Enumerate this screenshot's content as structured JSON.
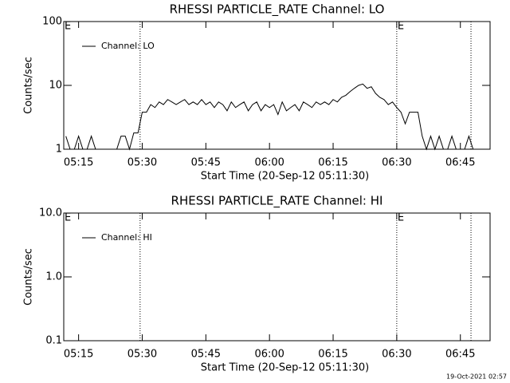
{
  "chart_data": [
    {
      "type": "line",
      "title": "RHESSI PARTICLE_RATE Channel: LO",
      "xlabel": "Start Time (20-Sep-12 05:11:30)",
      "ylabel": "Counts/sec",
      "log_y": true,
      "xlim": [
        11.5,
        112
      ],
      "ylim": [
        1,
        100
      ],
      "xticks": [
        {
          "value": 15,
          "label": "05:15"
        },
        {
          "value": 30,
          "label": "05:30"
        },
        {
          "value": 45,
          "label": "05:45"
        },
        {
          "value": 60,
          "label": "06:00"
        },
        {
          "value": 75,
          "label": "06:15"
        },
        {
          "value": 90,
          "label": "06:30"
        },
        {
          "value": 105,
          "label": "06:45"
        }
      ],
      "yticks": [
        1,
        10,
        100
      ],
      "event_lines": [
        29.5,
        90,
        107.5
      ],
      "event_labels": [
        {
          "x": 11.5,
          "label": "E"
        },
        {
          "x": 90,
          "label": "E"
        }
      ],
      "x": [
        12,
        13,
        14,
        15,
        16,
        17,
        18,
        19,
        20,
        21,
        22,
        23,
        24,
        25,
        26,
        27,
        28,
        29,
        30,
        31,
        32,
        33,
        34,
        35,
        36,
        37,
        38,
        39,
        40,
        41,
        42,
        43,
        44,
        45,
        46,
        47,
        48,
        49,
        50,
        51,
        52,
        53,
        54,
        55,
        56,
        57,
        58,
        59,
        60,
        61,
        62,
        63,
        64,
        65,
        66,
        67,
        68,
        69,
        70,
        71,
        72,
        73,
        74,
        75,
        76,
        77,
        78,
        79,
        80,
        81,
        82,
        83,
        84,
        85,
        86,
        87,
        88,
        89,
        90,
        91,
        92,
        93,
        94,
        95,
        96,
        97,
        98,
        99,
        100,
        101,
        102,
        103,
        104,
        105,
        106,
        107,
        108,
        109,
        110,
        111
      ],
      "series": [
        {
          "name": "Channel: LO",
          "color": "#000000",
          "values": [
            1.6,
            1,
            1,
            1.6,
            1,
            1,
            1.6,
            1,
            1,
            1,
            1,
            1,
            1,
            1.6,
            1.6,
            1,
            1.8,
            1.8,
            3.8,
            3.8,
            5,
            4.5,
            5.5,
            5,
            6,
            5.5,
            5,
            5.5,
            6,
            5,
            5.5,
            5,
            6,
            5,
            5.5,
            4.5,
            5.5,
            5,
            4,
            5.5,
            4.5,
            5,
            5.5,
            4,
            5,
            5.5,
            4,
            5,
            4.5,
            5,
            3.5,
            5.5,
            4,
            4.5,
            5,
            4,
            5.5,
            5,
            4.5,
            5.5,
            5,
            5.5,
            5,
            6,
            5.5,
            6.5,
            7,
            8,
            9,
            10,
            10.5,
            9,
            9.5,
            7.5,
            6.5,
            6,
            5,
            5.5,
            4.5,
            3.8,
            2.5,
            3.8,
            3.8,
            3.8,
            1.6,
            1,
            1.6,
            1,
            1.6,
            1,
            1,
            1.6,
            1,
            1,
            1,
            1.6,
            1,
            1,
            1,
            1
          ]
        }
      ]
    },
    {
      "type": "line",
      "title": "RHESSI PARTICLE_RATE Channel: HI",
      "xlabel": "Start Time (20-Sep-12 05:11:30)",
      "ylabel": "Counts/sec",
      "log_y": true,
      "xlim": [
        11.5,
        112
      ],
      "ylim": [
        0.1,
        10
      ],
      "xticks": [
        {
          "value": 15,
          "label": "05:15"
        },
        {
          "value": 30,
          "label": "05:30"
        },
        {
          "value": 45,
          "label": "05:45"
        },
        {
          "value": 60,
          "label": "06:00"
        },
        {
          "value": 75,
          "label": "06:15"
        },
        {
          "value": 90,
          "label": "06:30"
        },
        {
          "value": 105,
          "label": "06:45"
        }
      ],
      "yticks": [
        0.1,
        {
          "value": 1,
          "label": "1.0"
        },
        {
          "value": 10,
          "label": "10.0"
        }
      ],
      "event_lines": [
        29.5,
        90,
        107.5
      ],
      "event_labels": [
        {
          "x": 11.5,
          "label": "E"
        },
        {
          "x": 90,
          "label": "E"
        }
      ],
      "x": [],
      "series": [
        {
          "name": "Channel: HI",
          "color": "#000000",
          "values": []
        }
      ]
    }
  ],
  "footer": "19-Oct-2021 02:57"
}
